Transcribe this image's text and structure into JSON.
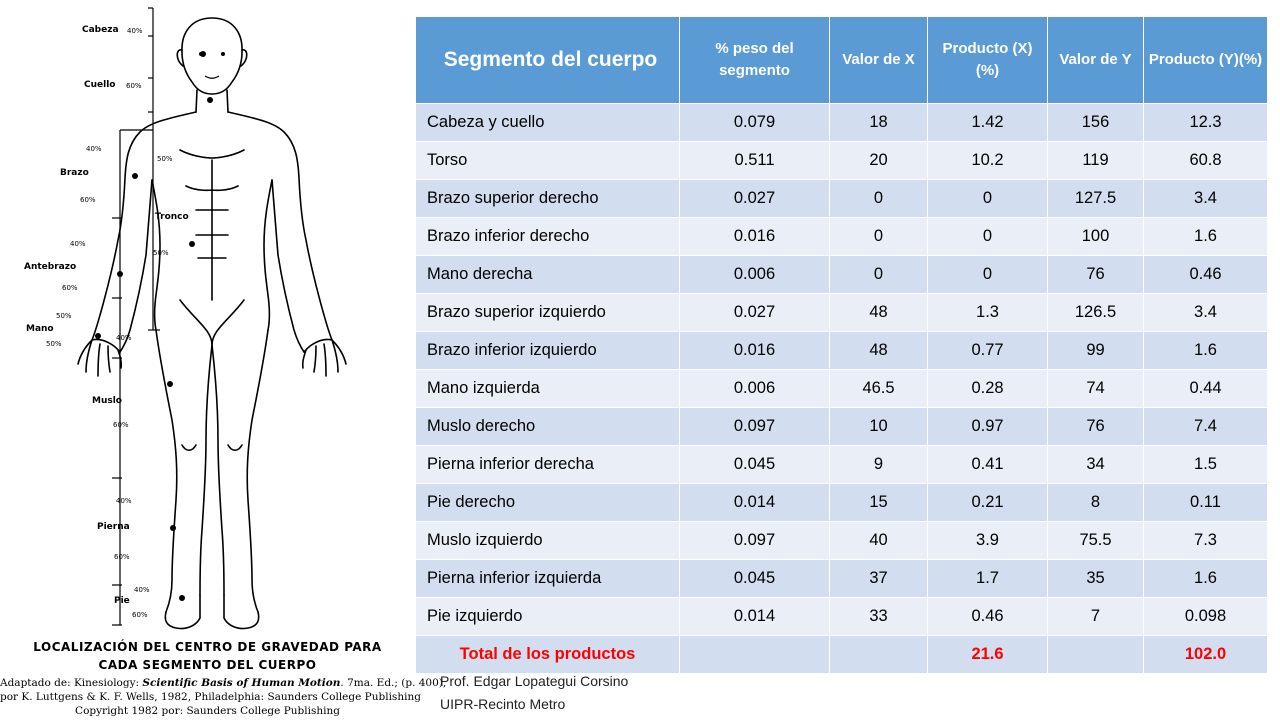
{
  "figure": {
    "segment_labels": [
      "Cabeza",
      "Cuello",
      "Brazo",
      "Tronco",
      "Antebrazo",
      "Mano",
      "Muslo",
      "Pierna",
      "Pie"
    ],
    "percent_labels": {
      "cabeza": "40%",
      "cuello": "60%",
      "brazo_top": "40%",
      "brazo_bottom": "60%",
      "tronco_top": "50%",
      "tronco_bottom": "50%",
      "antebrazo_top": "40%",
      "antebrazo_bottom": "60%",
      "mano_top": "50%",
      "mano_bottom": "50%",
      "mano_right": "40%",
      "muslo": "60%",
      "pierna_top": "40%",
      "pierna_bottom": "60%",
      "pie_top": "40%",
      "pie_bottom": "60%"
    },
    "caption_title_1": "LOCALIZACIÓN DEL CENTRO DE GRAVEDAD PARA",
    "caption_title_2": "CADA SEGMENTO DEL CUERPO",
    "caption_line_1a": "Adaptado de: Kinesiology: ",
    "caption_line_1b": "Scientific Basis of Human Motion",
    "caption_line_1c": ". 7ma. Ed.; (p. 400),",
    "caption_line_2": "por K. Luttgens & K. F. Wells, 1982, Philadelphia: Saunders College Publishing",
    "caption_line_3": "Copyright 1982 por: Saunders College Publishing"
  },
  "table": {
    "headers": [
      "Segmento del cuerpo",
      "% peso del segmento",
      "Valor de X",
      "Producto (X)(%)",
      "Valor de Y",
      "Producto (Y)(%)"
    ],
    "rows": [
      [
        "Cabeza y cuello",
        "0.079",
        "18",
        "1.42",
        "156",
        "12.3"
      ],
      [
        "Torso",
        "0.511",
        "20",
        "10.2",
        "119",
        "60.8"
      ],
      [
        "Brazo superior derecho",
        "0.027",
        "0",
        "0",
        "127.5",
        "3.4"
      ],
      [
        "Brazo inferior derecho",
        "0.016",
        "0",
        "0",
        "100",
        "1.6"
      ],
      [
        "Mano derecha",
        "0.006",
        "0",
        "0",
        "76",
        "0.46"
      ],
      [
        "Brazo superior izquierdo",
        "0.027",
        "48",
        "1.3",
        "126.5",
        "3.4"
      ],
      [
        "Brazo inferior izquierdo",
        "0.016",
        "48",
        "0.77",
        "99",
        "1.6"
      ],
      [
        "Mano izquierda",
        "0.006",
        "46.5",
        "0.28",
        "74",
        "0.44"
      ],
      [
        "Muslo derecho",
        "0.097",
        "10",
        "0.97",
        "76",
        "7.4"
      ],
      [
        "Pierna inferior derecha",
        "0.045",
        "9",
        "0.41",
        "34",
        "1.5"
      ],
      [
        "Pie derecho",
        "0.014",
        "15",
        "0.21",
        "8",
        "0.11"
      ],
      [
        "Muslo izquierdo",
        "0.097",
        "40",
        "3.9",
        "75.5",
        "7.3"
      ],
      [
        "Pierna inferior izquierda",
        "0.045",
        "37",
        "1.7",
        "35",
        "1.6"
      ],
      [
        "Pie izquierdo",
        "0.014",
        "33",
        "0.46",
        "7",
        "0.098"
      ]
    ],
    "total_label": "Total de los productos",
    "total_x": "21.6",
    "total_y": "102.0"
  },
  "credit": {
    "author": "Prof. Edgar Lopategui Corsino",
    "institution": "UIPR-Recinto Metro"
  }
}
